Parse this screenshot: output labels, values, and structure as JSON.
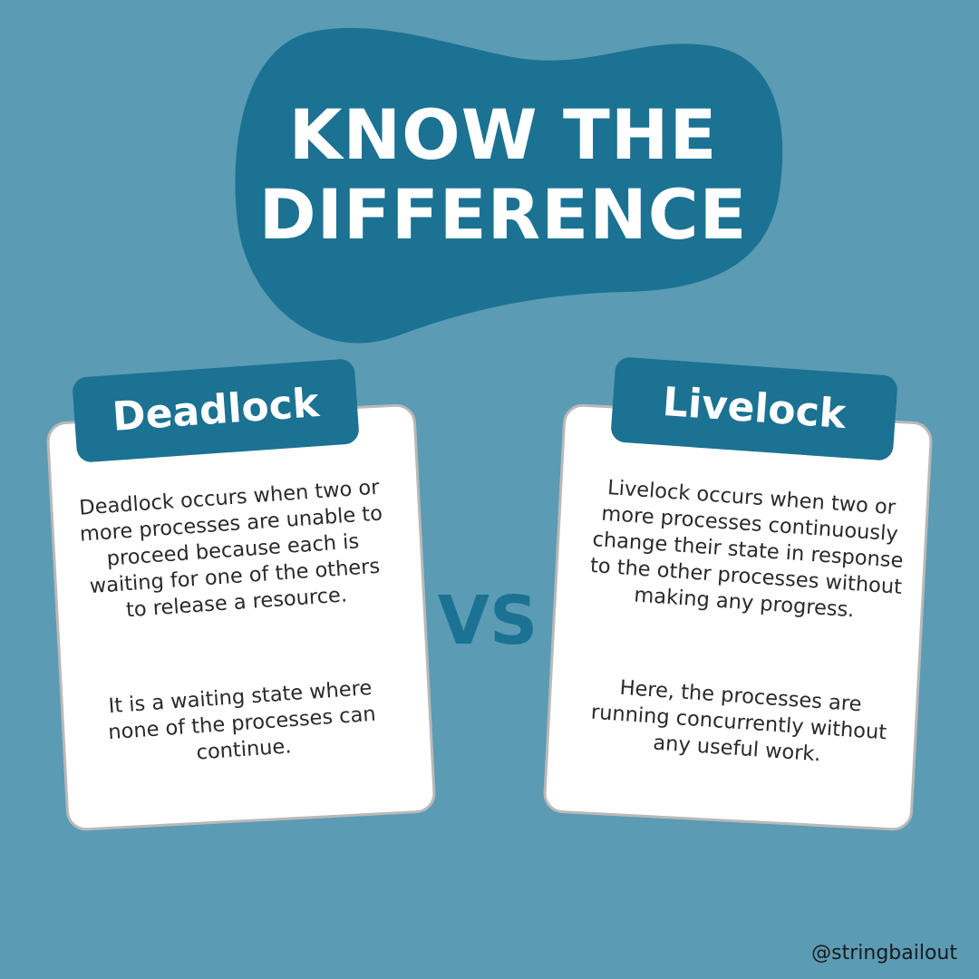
{
  "header": {
    "title_line_1": "KNOW THE",
    "title_line_2": "DIFFERENCE"
  },
  "left_card": {
    "label": "Deadlock",
    "paragraph_1": "Deadlock occurs when two or more processes are unable to proceed because each is waiting for one of the others to release a resource.",
    "paragraph_2": "It is a waiting state where none of the processes can continue."
  },
  "right_card": {
    "label": "Livelock",
    "paragraph_1": "Livelock occurs when two or more processes continuously change their state in response to the other processes without making any progress.",
    "paragraph_2": "Here, the processes are running concurrently without any useful work."
  },
  "separator": {
    "label": "VS"
  },
  "footer": {
    "handle": "@stringbailout"
  },
  "colors": {
    "background": "#5b9bb4",
    "accent": "#1b7292",
    "card": "#ffffff",
    "card_border": "#b9b9b9",
    "title_text": "#ffffff",
    "body_text": "#2a2a2a"
  }
}
